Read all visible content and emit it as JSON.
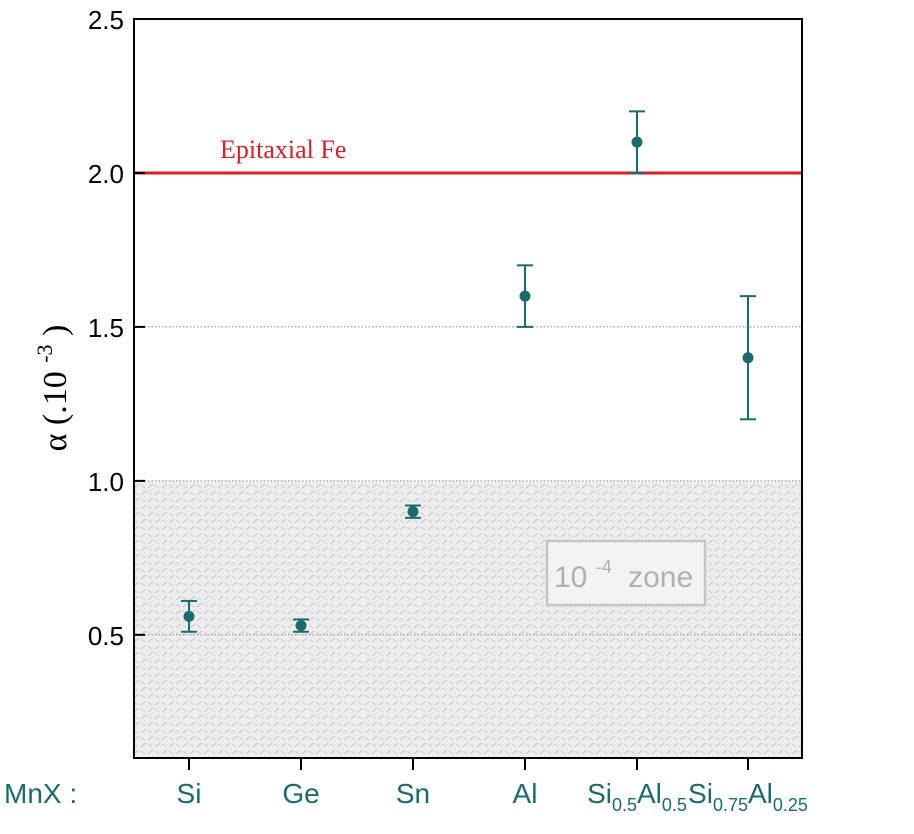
{
  "chart_data": {
    "type": "scatter",
    "ylabel_main": "α (.10",
    "ylabel_exp": "-3",
    "ylabel_close": ")",
    "ylim": [
      0.1,
      2.5
    ],
    "yticks": [
      0.5,
      1.0,
      1.5,
      2.0,
      2.5
    ],
    "ytick_labels": [
      "0.5",
      "1.0",
      "1.5",
      "2.0",
      "2.5"
    ],
    "grid": "dotted lines at 0.5, 1.0 and 1.5",
    "category_prefix": "MnX :",
    "categories": [
      {
        "parts": [
          {
            "t": "Si",
            "sub": false
          }
        ]
      },
      {
        "parts": [
          {
            "t": "Ge",
            "sub": false
          }
        ]
      },
      {
        "parts": [
          {
            "t": "Sn",
            "sub": false
          }
        ]
      },
      {
        "parts": [
          {
            "t": "Al",
            "sub": false
          }
        ]
      },
      {
        "parts": [
          {
            "t": "Si",
            "sub": false
          },
          {
            "t": "0.5",
            "sub": true
          },
          {
            "t": "Al",
            "sub": false
          },
          {
            "t": "0.5",
            "sub": true
          }
        ]
      },
      {
        "parts": [
          {
            "t": "Si",
            "sub": false
          },
          {
            "t": "0.75",
            "sub": true
          },
          {
            "t": "Al",
            "sub": false
          },
          {
            "t": "0.25",
            "sub": true
          }
        ]
      }
    ],
    "values": [
      0.56,
      0.53,
      0.9,
      1.6,
      2.1,
      1.4
    ],
    "errors": [
      0.05,
      0.02,
      0.02,
      0.1,
      0.1,
      0.2
    ],
    "reference_line": {
      "value": 2.0,
      "label": "Epitaxial Fe",
      "color": "#dd1e25"
    },
    "shaded_zone": {
      "below": 1.0,
      "label_base": "10",
      "label_exp": "-4",
      "label_word": "zone"
    },
    "colors": {
      "marker": "#1b6b6b",
      "axis_text": "#1b6b6b",
      "zone_fill": "#ededed",
      "zone_hatch": "#c6c6c6",
      "zone_text": "#b0b0b0"
    }
  }
}
